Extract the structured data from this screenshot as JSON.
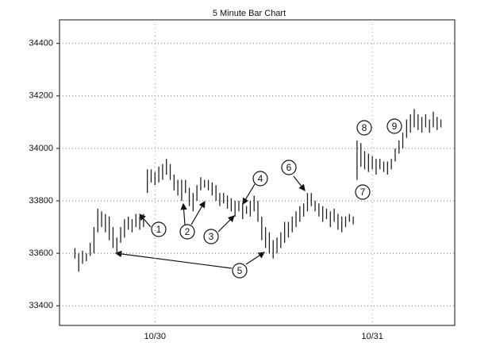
{
  "chart_data": {
    "type": "hilo",
    "title": "5 Minute Bar Chart",
    "categories": [
      null,
      null,
      null,
      null,
      null,
      null,
      null,
      null,
      null,
      null,
      null,
      null,
      null,
      null,
      null,
      null,
      null,
      null,
      null,
      null,
      null,
      "10/30",
      null,
      null,
      null,
      null,
      null,
      null,
      null,
      null,
      null,
      null,
      null,
      null,
      null,
      null,
      null,
      null,
      null,
      null,
      null,
      null,
      null,
      null,
      null,
      null,
      null,
      null,
      null,
      null,
      null,
      null,
      null,
      null,
      null,
      null,
      null,
      null,
      null,
      null,
      null,
      null,
      null,
      null,
      null,
      null,
      null,
      null,
      null,
      null,
      null,
      null,
      null,
      null,
      null,
      null,
      null,
      null,
      "10/31",
      null,
      null,
      null,
      null,
      null,
      null,
      null,
      null,
      null,
      null,
      null,
      null,
      null,
      null,
      null,
      null,
      null,
      null
    ],
    "lows": [
      33580,
      33530,
      33560,
      33570,
      33590,
      33600,
      33680,
      33700,
      33680,
      33650,
      33620,
      33600,
      33640,
      33660,
      33690,
      33680,
      33700,
      33690,
      33700,
      33830,
      33870,
      33860,
      33870,
      33880,
      33900,
      33880,
      33840,
      33820,
      33800,
      33830,
      33780,
      33760,
      33800,
      33840,
      33850,
      33840,
      33820,
      33800,
      33780,
      33790,
      33770,
      33760,
      33740,
      33760,
      33730,
      33750,
      33740,
      33760,
      33720,
      33650,
      33620,
      33600,
      33580,
      33600,
      33620,
      33640,
      33660,
      33680,
      33700,
      33720,
      33740,
      33760,
      33780,
      33760,
      33740,
      33720,
      33730,
      33700,
      33720,
      33690,
      33680,
      33700,
      33720,
      33710,
      33880,
      33930,
      33920,
      33910,
      33920,
      33900,
      33920,
      33910,
      33900,
      33920,
      33950,
      33980,
      34000,
      34040,
      34060,
      34080,
      34070,
      34060,
      34080,
      34060,
      34080,
      34070,
      34080
    ],
    "highs": [
      33620,
      33600,
      33610,
      33600,
      33640,
      33700,
      33770,
      33760,
      33750,
      33740,
      33700,
      33660,
      33700,
      33730,
      33740,
      33730,
      33750,
      33740,
      33750,
      33920,
      33920,
      33910,
      33930,
      33940,
      33960,
      33940,
      33900,
      33880,
      33880,
      33880,
      33850,
      33830,
      33860,
      33890,
      33880,
      33880,
      33870,
      33860,
      33830,
      33830,
      33820,
      33810,
      33800,
      33800,
      33790,
      33780,
      33800,
      33820,
      33800,
      33740,
      33700,
      33680,
      33650,
      33660,
      33680,
      33720,
      33720,
      33740,
      33760,
      33780,
      33790,
      33830,
      33830,
      33800,
      33790,
      33780,
      33770,
      33760,
      33770,
      33750,
      33740,
      33740,
      33750,
      33740,
      34030,
      34020,
      33990,
      33980,
      33970,
      33960,
      33960,
      33950,
      33950,
      33960,
      34000,
      34030,
      34060,
      34110,
      34130,
      34150,
      34130,
      34120,
      34130,
      34110,
      34140,
      34120,
      34110
    ],
    "color": "#222222",
    "ylim": [
      33325,
      34490
    ],
    "yticks": [
      33400,
      33600,
      33800,
      34000,
      34200,
      34400
    ],
    "grid": true,
    "annotations": [
      "1",
      "2",
      "3",
      "4",
      "5",
      "6",
      "7",
      "8",
      "9"
    ]
  }
}
